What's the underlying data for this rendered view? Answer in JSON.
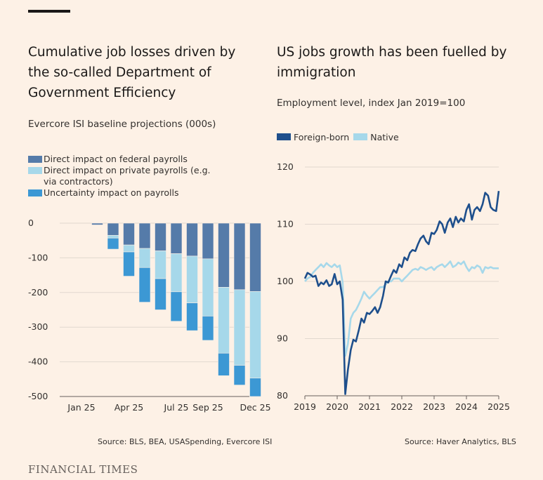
{
  "brand": "FINANCIAL TIMES",
  "colors": {
    "background": "#fdf1e6",
    "direct_federal": "#557ba9",
    "direct_private": "#a6d8ea",
    "uncertainty": "#3c98d4",
    "foreign_born": "#1e4f8c",
    "native": "#a6d8ea",
    "grid": "#e1d8cf"
  },
  "chart_data": [
    {
      "type": "bar",
      "stacked": true,
      "title": "Cumulative job losses driven by the so-called Department of Government Efficiency",
      "subtitle": "Evercore ISI baseline projections (000s)",
      "source": "Source: BLS, BEA, USASpending, Evercore ISI",
      "categories": [
        "Jan 25",
        "Feb 25",
        "Mar 25",
        "Apr 25",
        "May 25",
        "Jun 25",
        "Jul 25",
        "Aug 25",
        "Sep 25",
        "Oct 25",
        "Nov 25",
        "Dec 25"
      ],
      "x_tick_labels": [
        "Jan 25",
        "",
        "",
        "Apr 25",
        "",
        "",
        "Jul 25",
        "",
        "Sep 25",
        "",
        "",
        "Dec 25"
      ],
      "series": [
        {
          "name": "Direct impact on federal payrolls",
          "color": "#557ba9",
          "values": [
            0,
            -5,
            -35,
            -63,
            -73,
            -80,
            -88,
            -95,
            -103,
            -185,
            -192,
            -197
          ]
        },
        {
          "name": "Direct impact on private payrolls (e.g. via contractors)",
          "color": "#a6d8ea",
          "values": [
            0,
            0,
            -8,
            -20,
            -55,
            -80,
            -110,
            -135,
            -165,
            -190,
            -218,
            -250
          ]
        },
        {
          "name": "Uncertainty impact on payrolls",
          "color": "#3c98d4",
          "values": [
            0,
            0,
            -32,
            -70,
            -100,
            -90,
            -85,
            -80,
            -70,
            -65,
            -57,
            -53
          ]
        }
      ],
      "ylim": [
        -500,
        0
      ],
      "yticks": [
        0,
        -100,
        -200,
        -300,
        -400,
        -500
      ],
      "grid": true
    },
    {
      "type": "line",
      "title": "US jobs growth has been fuelled by immigration",
      "subtitle": "Employment level, index Jan 2019=100",
      "source": "Source: Haver Analytics, BLS",
      "xlim": [
        2019,
        2025
      ],
      "xticks": [
        2019,
        2020,
        2021,
        2022,
        2023,
        2024,
        2025
      ],
      "ylim": [
        80,
        120
      ],
      "yticks": [
        80,
        90,
        100,
        110,
        120
      ],
      "grid": true,
      "series": [
        {
          "name": "Foreign-born",
          "color": "#1e4f8c",
          "x": [
            2019.0,
            2019.08,
            2019.17,
            2019.25,
            2019.33,
            2019.42,
            2019.5,
            2019.58,
            2019.67,
            2019.75,
            2019.83,
            2019.92,
            2020.0,
            2020.08,
            2020.17,
            2020.25,
            2020.33,
            2020.42,
            2020.5,
            2020.58,
            2020.67,
            2020.75,
            2020.83,
            2020.92,
            2021.0,
            2021.08,
            2021.17,
            2021.25,
            2021.33,
            2021.42,
            2021.5,
            2021.58,
            2021.67,
            2021.75,
            2021.83,
            2021.92,
            2022.0,
            2022.08,
            2022.17,
            2022.25,
            2022.33,
            2022.42,
            2022.5,
            2022.58,
            2022.67,
            2022.75,
            2022.83,
            2022.92,
            2023.0,
            2023.08,
            2023.17,
            2023.25,
            2023.33,
            2023.42,
            2023.5,
            2023.58,
            2023.67,
            2023.75,
            2023.83,
            2023.92,
            2024.0,
            2024.08,
            2024.17,
            2024.25,
            2024.33,
            2024.42,
            2024.5,
            2024.58,
            2024.67,
            2024.75,
            2024.83,
            2024.92,
            2025.0
          ],
          "values": [
            100.5,
            101.5,
            101.2,
            100.8,
            101.0,
            99.2,
            99.8,
            99.5,
            100.2,
            99.2,
            99.5,
            101.3,
            99.5,
            100.0,
            96.8,
            80.3,
            84.5,
            88.0,
            89.8,
            89.5,
            91.5,
            93.5,
            92.8,
            94.5,
            94.3,
            94.8,
            95.5,
            94.5,
            95.5,
            97.5,
            100.0,
            99.8,
            101.0,
            102.0,
            101.5,
            103.0,
            102.5,
            104.2,
            103.7,
            105.0,
            105.5,
            105.3,
            106.5,
            107.5,
            108.0,
            107.0,
            106.5,
            108.5,
            108.3,
            109.0,
            110.5,
            110.0,
            108.5,
            110.3,
            111.0,
            109.5,
            111.3,
            110.3,
            111.0,
            110.5,
            112.5,
            113.5,
            110.8,
            112.5,
            113.0,
            112.3,
            113.5,
            115.5,
            115.0,
            113.0,
            112.5,
            112.3,
            115.8
          ]
        },
        {
          "name": "Native",
          "color": "#a6d8ea",
          "x": [
            2019.0,
            2019.08,
            2019.17,
            2019.25,
            2019.33,
            2019.42,
            2019.5,
            2019.58,
            2019.67,
            2019.75,
            2019.83,
            2019.92,
            2020.0,
            2020.08,
            2020.17,
            2020.25,
            2020.33,
            2020.42,
            2020.5,
            2020.58,
            2020.67,
            2020.75,
            2020.83,
            2020.92,
            2021.0,
            2021.08,
            2021.17,
            2021.25,
            2021.33,
            2021.42,
            2021.5,
            2021.58,
            2021.67,
            2021.75,
            2021.83,
            2021.92,
            2022.0,
            2022.08,
            2022.17,
            2022.25,
            2022.33,
            2022.42,
            2022.5,
            2022.58,
            2022.67,
            2022.75,
            2022.83,
            2022.92,
            2023.0,
            2023.08,
            2023.17,
            2023.25,
            2023.33,
            2023.42,
            2023.5,
            2023.58,
            2023.67,
            2023.75,
            2023.83,
            2023.92,
            2024.0,
            2024.08,
            2024.17,
            2024.25,
            2024.33,
            2024.42,
            2024.5,
            2024.58,
            2024.67,
            2024.75,
            2024.83,
            2024.92,
            2025.0
          ],
          "values": [
            100.0,
            100.5,
            100.8,
            101.5,
            102.0,
            102.5,
            103.0,
            102.5,
            103.2,
            102.8,
            102.5,
            103.0,
            102.5,
            102.8,
            99.8,
            87.0,
            89.0,
            93.5,
            94.5,
            95.0,
            96.0,
            97.0,
            98.2,
            97.5,
            97.0,
            97.5,
            98.0,
            98.5,
            99.0,
            99.0,
            99.5,
            100.0,
            100.0,
            100.5,
            100.5,
            100.5,
            100.0,
            100.5,
            101.0,
            101.5,
            102.0,
            102.2,
            102.0,
            102.5,
            102.3,
            102.0,
            102.3,
            102.5,
            102.0,
            102.5,
            102.8,
            103.0,
            102.5,
            103.0,
            103.5,
            102.5,
            102.8,
            103.3,
            103.0,
            103.5,
            102.5,
            101.8,
            102.5,
            102.3,
            102.8,
            102.5,
            101.5,
            102.5,
            102.3,
            102.5,
            102.3,
            102.3,
            102.3
          ]
        }
      ]
    }
  ]
}
